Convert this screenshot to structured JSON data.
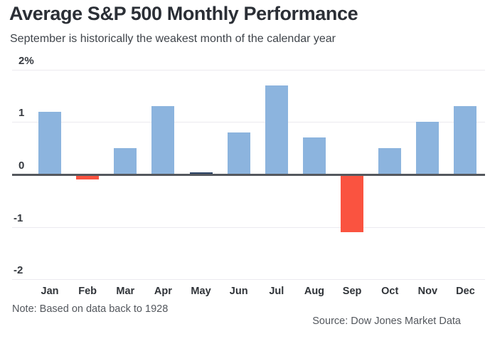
{
  "header": {
    "title": "Average S&P 500 Monthly Performance",
    "subtitle": "September is historically the weakest month of the calendar year"
  },
  "chart_data": {
    "type": "bar",
    "title": "Average S&P 500 Monthly Performance",
    "subtitle": "September is historically the weakest month of the calendar year",
    "categories": [
      "Jan",
      "Feb",
      "Mar",
      "Apr",
      "May",
      "Jun",
      "Jul",
      "Aug",
      "Sep",
      "Oct",
      "Nov",
      "Dec"
    ],
    "values": [
      1.2,
      -0.1,
      0.5,
      1.3,
      0.0,
      0.8,
      1.7,
      0.7,
      -1.1,
      0.5,
      1.0,
      1.3
    ],
    "unit": "%",
    "xlabel": "",
    "ylabel": "",
    "ylim": [
      -2,
      2
    ],
    "yticks": [
      {
        "label": "2%",
        "value": 2
      },
      {
        "label": "1",
        "value": 1
      },
      {
        "label": "0",
        "value": 0
      },
      {
        "label": "-1",
        "value": -1
      },
      {
        "label": "-2",
        "value": -2
      }
    ],
    "grid": true,
    "legend": false,
    "positive_color": "#8cb4de",
    "negative_color": "#fa5340",
    "zero_color": "#2f4668",
    "axis_color": "#55585e",
    "gridline_color": "#eceaef"
  },
  "footer": {
    "note": "Note: Based on data back to 1928",
    "source": "Source: Dow Jones Market Data"
  }
}
